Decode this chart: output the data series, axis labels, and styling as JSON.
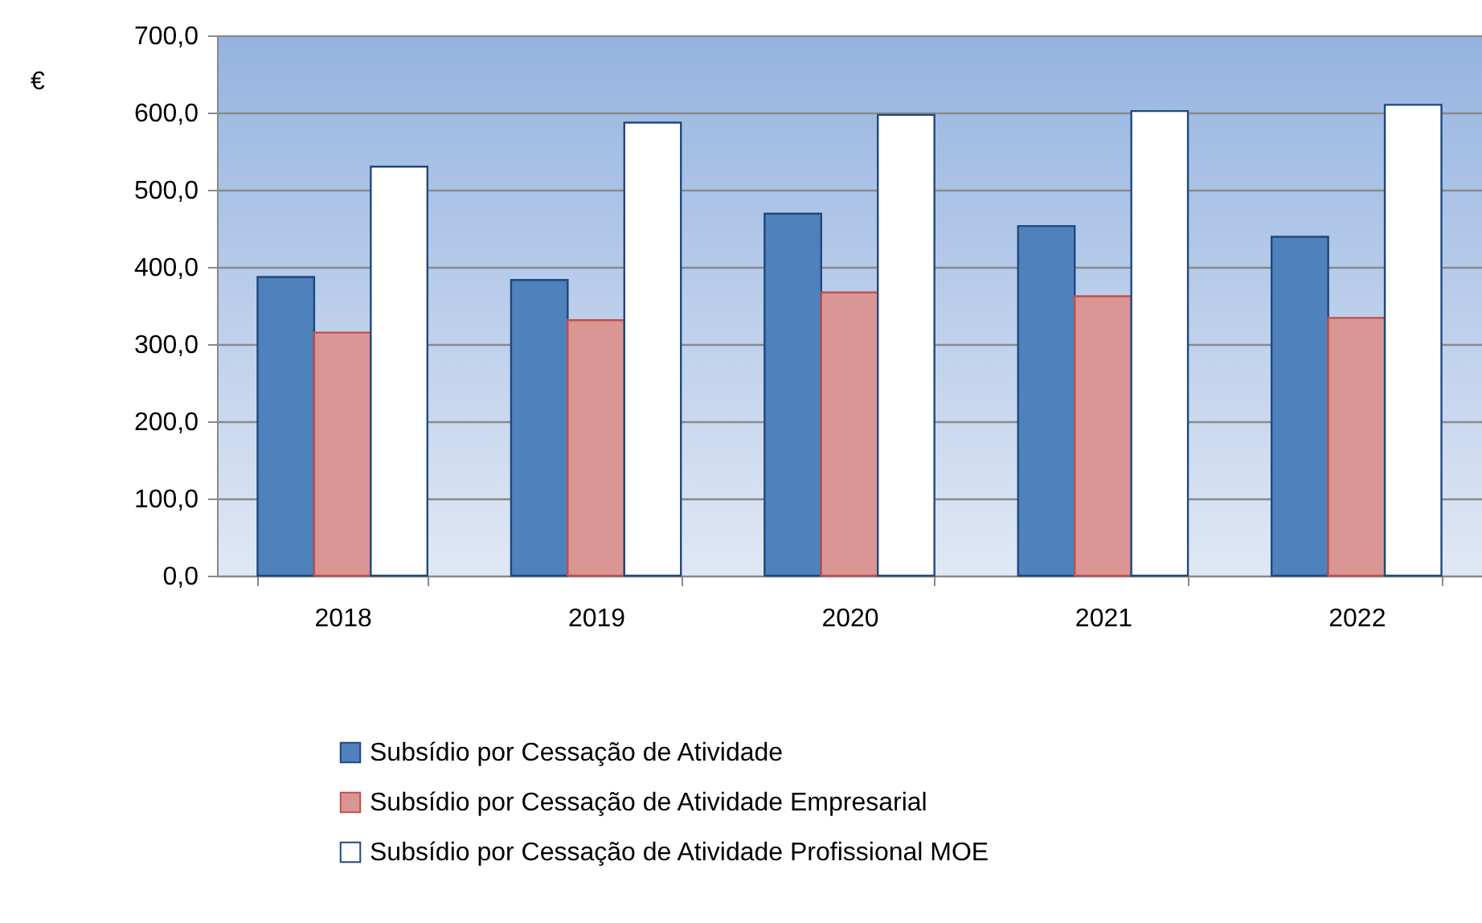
{
  "chart_data": {
    "type": "bar",
    "ylabel": "€",
    "categories": [
      "2018",
      "2019",
      "2020",
      "2021",
      "2022"
    ],
    "series": [
      {
        "name": "Subsídio por Cessação de Atividade",
        "color": "#4f81bd",
        "values": [
          387,
          383,
          469,
          453,
          439
        ]
      },
      {
        "name": "Subsídio por Cessação de Atividade Empresarial",
        "color": "#d99694",
        "values": [
          315,
          331,
          367,
          362,
          334
        ]
      },
      {
        "name": "Subsídio por Cessação de Atividade Profissional MOE",
        "color": "#ffffff",
        "values": [
          530,
          587,
          597,
          602,
          610
        ]
      }
    ],
    "ylim": [
      0,
      700
    ],
    "yticks": [
      {
        "value": 0,
        "label": "0,0"
      },
      {
        "value": 100,
        "label": "100,0"
      },
      {
        "value": 200,
        "label": "200,0"
      },
      {
        "value": 300,
        "label": "300,0"
      },
      {
        "value": 400,
        "label": "400,0"
      },
      {
        "value": 500,
        "label": "500,0"
      },
      {
        "value": 600,
        "label": "600,0"
      },
      {
        "value": 700,
        "label": "700,0"
      }
    ],
    "grid": "y",
    "legend": "bottom"
  }
}
